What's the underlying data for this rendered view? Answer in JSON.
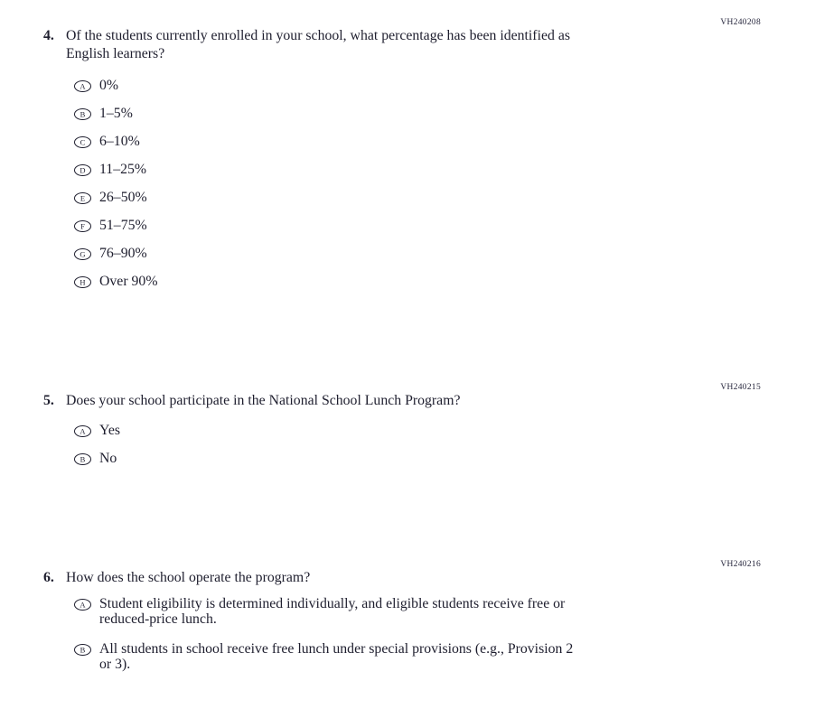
{
  "page": {
    "background": "#ffffff",
    "ink_color": "#1e1e2e",
    "code_color": "#26263c"
  },
  "questions": [
    {
      "number": "4.",
      "code": "VH240208",
      "text": "Of the students currently enrolled in your school, what percentage has been identified as English learners?",
      "lines": [
        "Of the students currently enrolled in your school, what percentage has been identified as",
        "English learners?"
      ],
      "options": [
        {
          "letter": "A",
          "label": "0%"
        },
        {
          "letter": "B",
          "label": "1–5%"
        },
        {
          "letter": "C",
          "label": "6–10%"
        },
        {
          "letter": "D",
          "label": "11–25%"
        },
        {
          "letter": "E",
          "label": "26–50%"
        },
        {
          "letter": "F",
          "label": "51–75%"
        },
        {
          "letter": "G",
          "label": "76–90%"
        },
        {
          "letter": "H",
          "label": "Over 90%"
        }
      ]
    },
    {
      "number": "5.",
      "code": "VH240215",
      "text": "Does your school participate in the National School Lunch Program?",
      "lines": [
        "Does your school participate in the National School Lunch Program?"
      ],
      "options": [
        {
          "letter": "A",
          "label": "Yes"
        },
        {
          "letter": "B",
          "label": "No"
        }
      ]
    },
    {
      "number": "6.",
      "code": "VH240216",
      "text": "How does the school operate the program?",
      "lines": [
        "How does the school operate the program?"
      ],
      "options": [
        {
          "letter": "A",
          "label": "Student eligibility is determined individually, and eligible students receive free or reduced-price lunch.",
          "lines": [
            "Student eligibility is determined individually, and eligible students receive free or",
            "reduced-price lunch."
          ]
        },
        {
          "letter": "B",
          "label": "All students in school receive free lunch under special provisions (e.g., Provision 2 or 3).",
          "lines": [
            "All students in school receive free lunch under special provisions (e.g., Provision 2",
            "or 3)."
          ]
        }
      ]
    }
  ]
}
